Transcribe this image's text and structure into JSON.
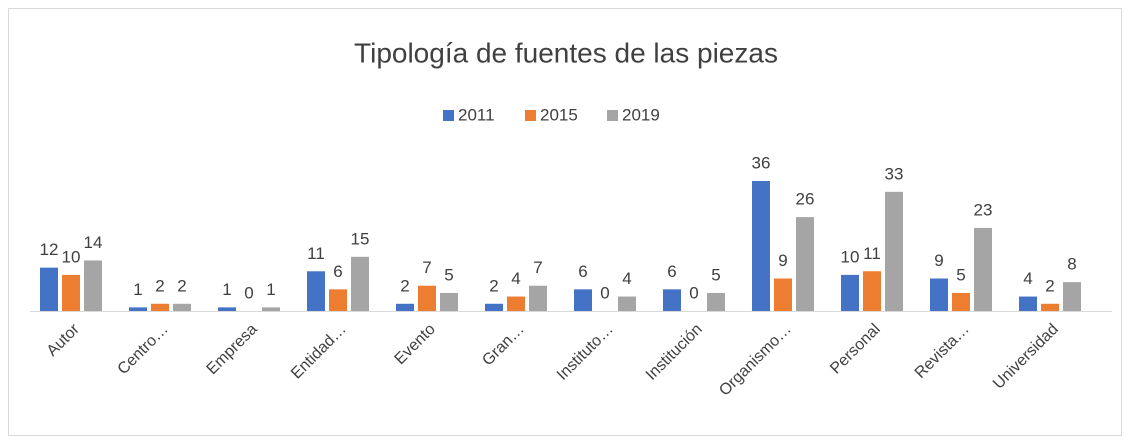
{
  "chart_data": {
    "type": "bar",
    "title": "Tipología de fuentes de las piezas",
    "categories": [
      "Autor",
      "Centro…",
      "Empresa",
      "Entidad…",
      "Evento",
      "Gran…",
      "Instituto…",
      "Institución",
      "Organismo…",
      "Personal",
      "Revista…",
      "Universidad"
    ],
    "series": [
      {
        "name": "2011",
        "color": "#4472c4",
        "values": [
          12,
          1,
          1,
          11,
          2,
          2,
          6,
          6,
          36,
          10,
          9,
          4
        ]
      },
      {
        "name": "2015",
        "color": "#ed7d31",
        "values": [
          10,
          2,
          0,
          6,
          7,
          4,
          0,
          0,
          9,
          11,
          5,
          2
        ]
      },
      {
        "name": "2019",
        "color": "#a5a5a5",
        "values": [
          14,
          2,
          1,
          15,
          5,
          7,
          4,
          5,
          26,
          33,
          23,
          8
        ]
      }
    ],
    "legend": "top"
  }
}
